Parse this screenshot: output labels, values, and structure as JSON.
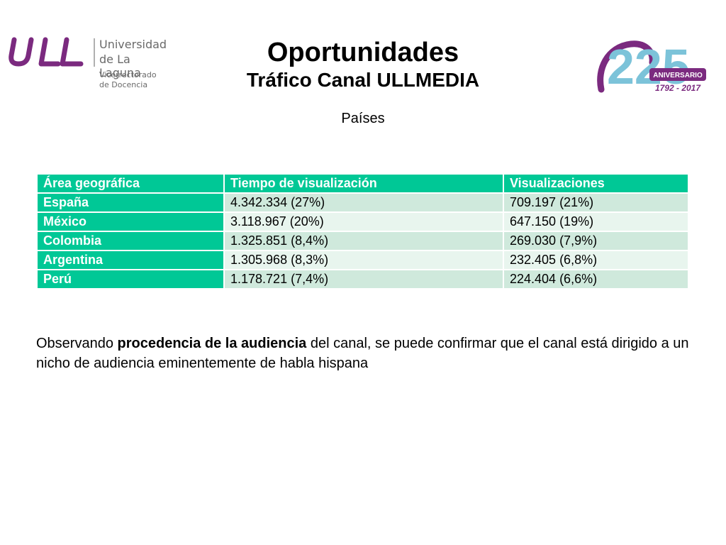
{
  "header": {
    "university_line1": "Universidad",
    "university_line2": "de La Laguna",
    "department_line1": "Vicerrectorado",
    "department_line2": "de Docencia",
    "anniversary_number": "225",
    "anniversary_label": "ANIVERSARIO",
    "anniversary_years": "1792 - 2017"
  },
  "title": "Oportunidades",
  "subtitle": "Tráfico Canal ULLMEDIA",
  "section_label": "Países",
  "table": {
    "headers": [
      "Área geográfica",
      "Tiempo de visualización",
      "Visualizaciones"
    ],
    "rows": [
      [
        "España",
        "4.342.334 (27%)",
        "709.197 (21%)"
      ],
      [
        "México",
        "3.118.967 (20%)",
        "647.150 (19%)"
      ],
      [
        "Colombia",
        "1.325.851 (8,4%)",
        "269.030 (7,9%)"
      ],
      [
        "Argentina",
        "1.305.968 (8,3%)",
        "232.405 (6,8%)"
      ],
      [
        "Perú",
        "1.178.721 (7,4%)",
        "224.404 (6,6%)"
      ]
    ]
  },
  "observation": {
    "prefix": "Observando ",
    "bold": "procedencia de la audiencia",
    "suffix": " del canal, se puede confirmar que el canal está dirigido a un nicho de audiencia eminentemente de habla hispana"
  },
  "colors": {
    "table_header": "#00c896",
    "row_light": "#cfe9dc",
    "row_lighter": "#e8f5ee",
    "ull_purple": "#7b2a7f"
  }
}
